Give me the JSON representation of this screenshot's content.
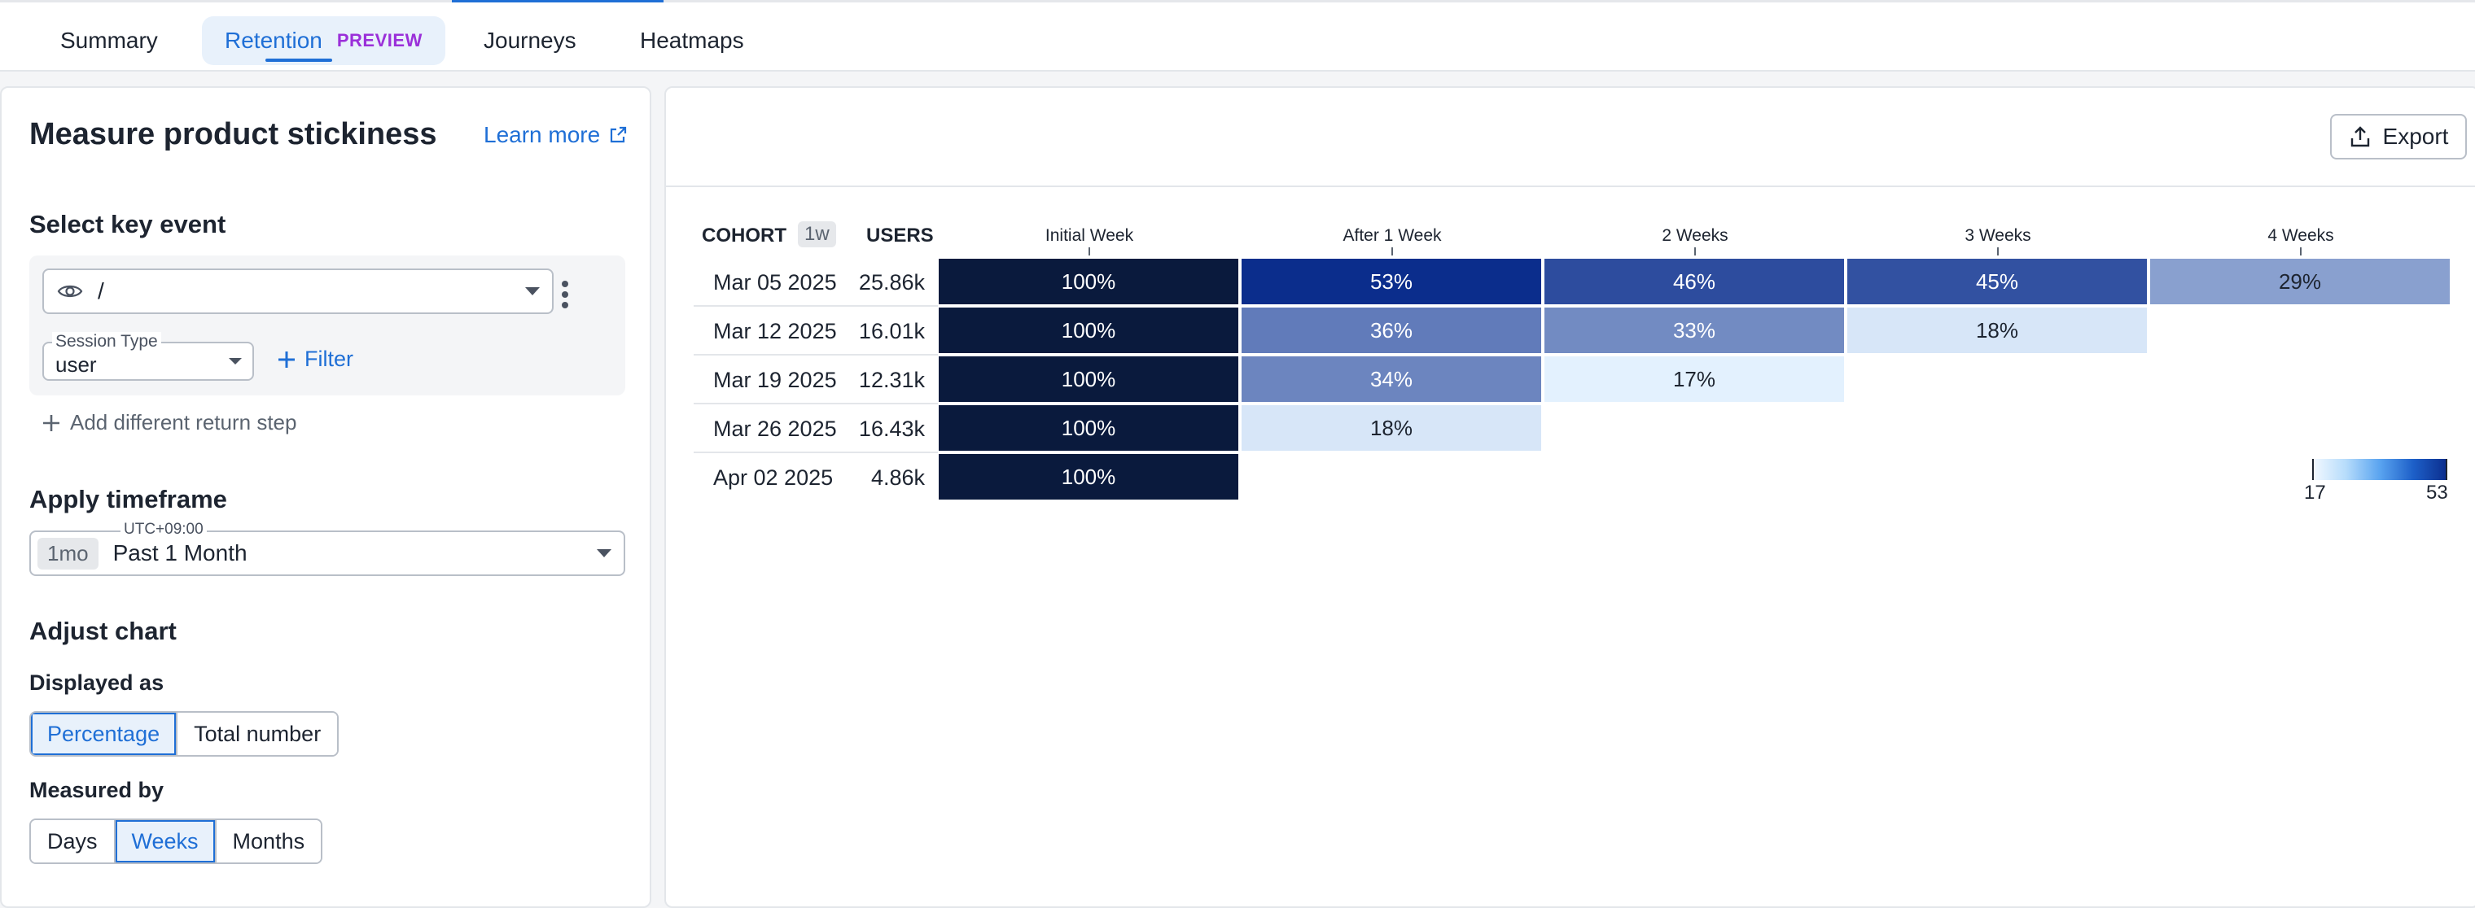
{
  "tabs": [
    {
      "label": "Summary"
    },
    {
      "label": "Retention",
      "badge": "PREVIEW"
    },
    {
      "label": "Journeys"
    },
    {
      "label": "Heatmaps"
    }
  ],
  "panel": {
    "title": "Measure product stickiness",
    "learn_more": "Learn more",
    "key_event_heading": "Select key event",
    "event_value": "/",
    "session_type_label": "Session Type",
    "session_type_value": "user",
    "filter_label": "Filter",
    "add_step_label": "Add different return step",
    "timeframe_heading": "Apply timeframe",
    "timezone": "UTC+09:00",
    "timeframe_chip": "1mo",
    "timeframe_value": "Past 1 Month",
    "adjust_heading": "Adjust chart",
    "displayed_as_label": "Displayed as",
    "displayed_as_options": [
      "Percentage",
      "Total number"
    ],
    "displayed_as_selected": "Percentage",
    "measured_by_label": "Measured by",
    "measured_by_options": [
      "Days",
      "Weeks",
      "Months"
    ],
    "measured_by_selected": "Weeks"
  },
  "toolbar": {
    "export_label": "Export"
  },
  "chart_data": {
    "type": "heatmap",
    "header": {
      "cohort": "COHORT",
      "interval_chip": "1w",
      "users": "USERS"
    },
    "columns": [
      "Initial Week",
      "After 1 Week",
      "2 Weeks",
      "3 Weeks",
      "4 Weeks"
    ],
    "rows": [
      {
        "cohort": "Mar 05 2025",
        "users": "25.86k",
        "values": [
          100,
          53,
          46,
          45,
          29
        ]
      },
      {
        "cohort": "Mar 12 2025",
        "users": "16.01k",
        "values": [
          100,
          36,
          33,
          18
        ]
      },
      {
        "cohort": "Mar 19 2025",
        "users": "12.31k",
        "values": [
          100,
          34,
          17
        ]
      },
      {
        "cohort": "Mar 26 2025",
        "users": "16.43k",
        "values": [
          100,
          18
        ]
      },
      {
        "cohort": "Apr 02 2025",
        "users": "4.86k",
        "values": [
          100
        ]
      }
    ],
    "value_suffix": "%",
    "color_scale": {
      "min": 17,
      "max": 53,
      "min_color": "#e3f1fe",
      "max_color": "#0b2d8c",
      "full_color": "#0a1a3d"
    },
    "legend": {
      "min_label": "17",
      "max_label": "53",
      "placement": "right"
    }
  }
}
